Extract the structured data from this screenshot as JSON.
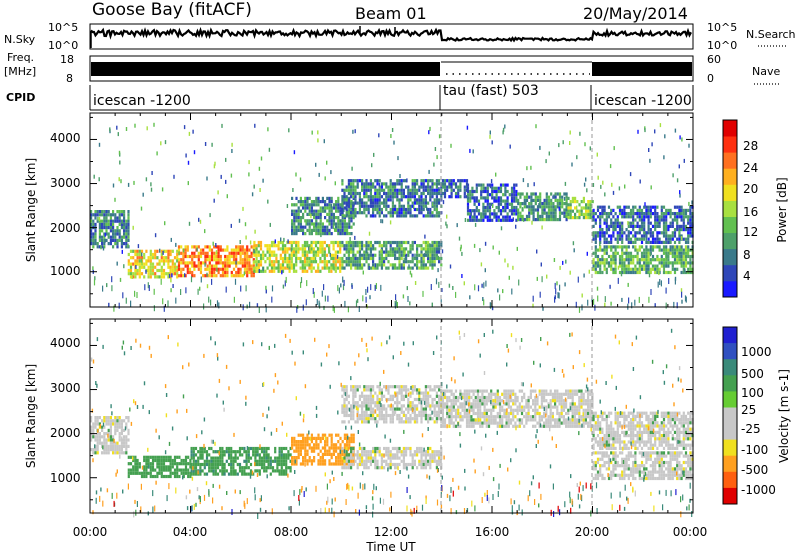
{
  "header": {
    "station": "Goose Bay (fitACF)",
    "beam": "Beam 01",
    "date": "20/May/2014"
  },
  "left_labels": {
    "nsky": "N.Sky",
    "freq_line1": "Freq.",
    "freq_line2": "[MHz]",
    "cpid": "CPID"
  },
  "right_labels": {
    "nsearch": "N.Search",
    "nave": "Nave"
  },
  "nsky_ticks": [
    "10^5",
    "10^0"
  ],
  "nsearch_ticks": [
    "10^5",
    "10^0"
  ],
  "freq_ticks": [
    "18",
    "8"
  ],
  "nave_ticks": [
    "60",
    "0"
  ],
  "cpid_segments": [
    {
      "label": "icescan -1200",
      "start_hour": 0,
      "end_hour": 14
    },
    {
      "label": "tau (fast) 503",
      "start_hour": 14,
      "end_hour": 20
    },
    {
      "label": "icescan -1200",
      "start_hour": 20,
      "end_hour": 24
    }
  ],
  "x_ticks": [
    "00:00",
    "04:00",
    "08:00",
    "12:00",
    "16:00",
    "20:00",
    "00:00"
  ],
  "x_label": "Time UT",
  "y_ticks": [
    "1000",
    "2000",
    "3000",
    "4000"
  ],
  "y_label": "Slant Range [km]",
  "power_colorbar": {
    "label": "Power [dB]",
    "ticks": [
      "4",
      "8",
      "12",
      "16",
      "20",
      "24",
      "28"
    ],
    "colors": [
      "#1a1aff",
      "#2f47b8",
      "#3a7a8a",
      "#4ea06a",
      "#62c050",
      "#a8e040",
      "#f0e020",
      "#ffb020",
      "#ff7020",
      "#ff3010",
      "#e00000"
    ]
  },
  "velocity_colorbar": {
    "label": "Velocity [m s-1]",
    "ticks": [
      "1000",
      "500",
      "100",
      "25",
      "-25",
      "-100",
      "-500",
      "-1000"
    ],
    "colors": [
      "#2020d0",
      "#3050c0",
      "#3a8a7a",
      "#44a050",
      "#66cc33",
      "#c8c8c8",
      "#c8c8c8",
      "#f0e020",
      "#ffa020",
      "#ff6010",
      "#e00000"
    ]
  },
  "chart_data": [
    {
      "type": "heatmap",
      "panel": "power",
      "x_unit": "hours UT",
      "y_unit": "km",
      "xlim": [
        0,
        24
      ],
      "ylim": [
        200,
        4600
      ],
      "value_label": "Power [dB]",
      "value_range": [
        0,
        30
      ],
      "regions": [
        {
          "x_range": [
            0.0,
            1.5
          ],
          "y_range": [
            1600,
            2400
          ],
          "value": 8
        },
        {
          "x_range": [
            1.5,
            3.5
          ],
          "y_range": [
            900,
            1500
          ],
          "value": 18
        },
        {
          "x_range": [
            3.5,
            6.5
          ],
          "y_range": [
            900,
            1600
          ],
          "value": 22
        },
        {
          "x_range": [
            6.5,
            10.0
          ],
          "y_range": [
            1000,
            1700
          ],
          "value": 16
        },
        {
          "x_range": [
            8.0,
            10.5
          ],
          "y_range": [
            1900,
            2700
          ],
          "value": 8
        },
        {
          "x_range": [
            10.0,
            14.0
          ],
          "y_range": [
            1100,
            1700
          ],
          "value": 10
        },
        {
          "x_range": [
            10.0,
            14.0
          ],
          "y_range": [
            2300,
            3100
          ],
          "value": 7
        },
        {
          "x_range": [
            14.0,
            15.0
          ],
          "y_range": [
            2700,
            3100
          ],
          "value": 6
        },
        {
          "x_range": [
            15.0,
            17.0
          ],
          "y_range": [
            2200,
            3000
          ],
          "value": 6
        },
        {
          "x_range": [
            17.0,
            19.0
          ],
          "y_range": [
            2200,
            2800
          ],
          "value": 9
        },
        {
          "x_range": [
            19.0,
            20.0
          ],
          "y_range": [
            2200,
            2700
          ],
          "value": 13
        },
        {
          "x_range": [
            20.0,
            24.0
          ],
          "y_range": [
            1000,
            1600
          ],
          "value": 11
        },
        {
          "x_range": [
            20.0,
            24.0
          ],
          "y_range": [
            1700,
            2500
          ],
          "value": 6
        }
      ]
    },
    {
      "type": "heatmap",
      "panel": "velocity",
      "x_unit": "hours UT",
      "y_unit": "km",
      "xlim": [
        0,
        24
      ],
      "ylim": [
        200,
        4600
      ],
      "value_label": "Velocity [m s-1]",
      "value_range": [
        -1000,
        1000
      ],
      "regions": [
        {
          "x_range": [
            0.0,
            1.5
          ],
          "y_range": [
            1600,
            2400
          ],
          "value": 0
        },
        {
          "x_range": [
            1.5,
            4.0
          ],
          "y_range": [
            1000,
            1500
          ],
          "value": 60
        },
        {
          "x_range": [
            4.0,
            8.0
          ],
          "y_range": [
            1100,
            1700
          ],
          "value": 80
        },
        {
          "x_range": [
            8.0,
            10.5
          ],
          "y_range": [
            1300,
            2000
          ],
          "value": -200
        },
        {
          "x_range": [
            10.0,
            14.0
          ],
          "y_range": [
            1200,
            1700
          ],
          "value": 0
        },
        {
          "x_range": [
            10.0,
            14.0
          ],
          "y_range": [
            2300,
            3100
          ],
          "value": 0
        },
        {
          "x_range": [
            14.0,
            20.0
          ],
          "y_range": [
            2200,
            3000
          ],
          "value": 0
        },
        {
          "x_range": [
            20.0,
            24.0
          ],
          "y_range": [
            1000,
            1600
          ],
          "value": 0
        },
        {
          "x_range": [
            20.0,
            24.0
          ],
          "y_range": [
            1700,
            2500
          ],
          "value": 0
        }
      ]
    }
  ]
}
